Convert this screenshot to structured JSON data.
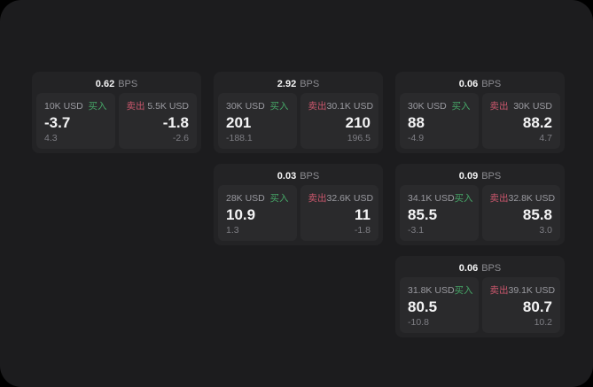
{
  "labels": {
    "bps_unit": "BPS",
    "buy": "买入",
    "sell": "卖出"
  },
  "colors": {
    "background": "#1c1c1e",
    "card": "#232325",
    "panel": "#2a2a2c",
    "buy": "#46a667",
    "sell": "#c9566c"
  },
  "cards": [
    {
      "bps": "0.62",
      "buy": {
        "amount": "10K USD",
        "value": "-3.7",
        "sub": "4.3"
      },
      "sell": {
        "amount": "5.5K USD",
        "value": "-1.8",
        "sub": "-2.6"
      }
    },
    {
      "bps": "2.92",
      "buy": {
        "amount": "30K USD",
        "value": "201",
        "sub": "-188.1"
      },
      "sell": {
        "amount": "30.1K USD",
        "value": "210",
        "sub": "196.5"
      }
    },
    {
      "bps": "0.06",
      "buy": {
        "amount": "30K USD",
        "value": "88",
        "sub": "-4.9"
      },
      "sell": {
        "amount": "30K USD",
        "value": "88.2",
        "sub": "4.7"
      }
    },
    {
      "bps": "0.03",
      "buy": {
        "amount": "28K USD",
        "value": "10.9",
        "sub": "1.3"
      },
      "sell": {
        "amount": "32.6K USD",
        "value": "11",
        "sub": "-1.8"
      }
    },
    {
      "bps": "0.09",
      "buy": {
        "amount": "34.1K USD",
        "value": "85.5",
        "sub": "-3.1"
      },
      "sell": {
        "amount": "32.8K USD",
        "value": "85.8",
        "sub": "3.0"
      }
    },
    {
      "bps": "0.06",
      "buy": {
        "amount": "31.8K USD",
        "value": "80.5",
        "sub": "-10.8"
      },
      "sell": {
        "amount": "39.1K USD",
        "value": "80.7",
        "sub": "10.2"
      }
    }
  ]
}
